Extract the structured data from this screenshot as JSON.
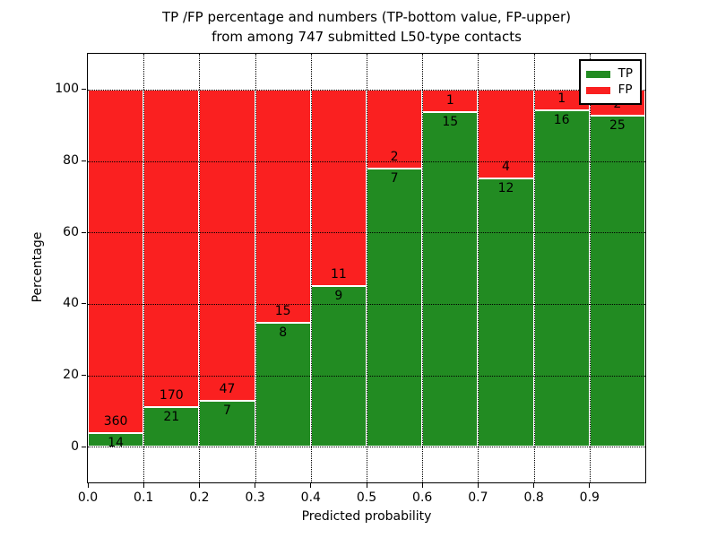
{
  "figure": {
    "title_line1": "TP /FP percentage and numbers (TP-bottom value, FP-upper)",
    "title_line2": "from among 747 submitted L50-type contacts"
  },
  "chart_data": {
    "type": "bar",
    "variant": "stacked-100-percent",
    "title": "TP /FP percentage and numbers (TP-bottom value, FP-upper)\nfrom among 747 submitted L50-type contacts",
    "xlabel": "Predicted probability",
    "ylabel": "Percentage",
    "total_contacts": 747,
    "bin_width": 0.1,
    "categories": [
      "0.0",
      "0.1",
      "0.2",
      "0.3",
      "0.4",
      "0.5",
      "0.6",
      "0.7",
      "0.8",
      "0.9"
    ],
    "series": [
      {
        "name": "TP",
        "color": "#228b22",
        "counts": [
          14,
          21,
          7,
          8,
          9,
          7,
          15,
          12,
          16,
          25
        ]
      },
      {
        "name": "FP",
        "color": "#fa2020",
        "counts": [
          360,
          170,
          47,
          15,
          11,
          2,
          1,
          4,
          1,
          2
        ]
      }
    ],
    "tp_percent": [
      3.74,
      10.99,
      12.96,
      34.78,
      45.0,
      77.78,
      93.75,
      75.0,
      94.12,
      92.59
    ],
    "xticks": [
      "0.0",
      "0.1",
      "0.2",
      "0.3",
      "0.4",
      "0.5",
      "0.6",
      "0.7",
      "0.8",
      "0.9"
    ],
    "yticks": [
      0,
      20,
      40,
      60,
      80,
      100
    ],
    "xlim": [
      0.0,
      1.0
    ],
    "ylim": [
      -10,
      110
    ],
    "grid": "dotted-black-both-axes",
    "bar_edge_color": "#ffffff",
    "legend": {
      "position": "upper right",
      "entries": [
        {
          "label": "TP",
          "color": "#228b22"
        },
        {
          "label": "FP",
          "color": "#fa2020"
        }
      ]
    }
  }
}
